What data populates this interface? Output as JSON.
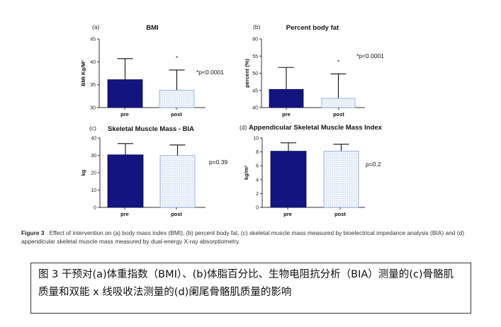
{
  "chart_data": [
    {
      "type": "bar",
      "panel": "(a)",
      "title": "BMI",
      "ylabel": "BMI Kg/M²",
      "ylim": [
        30,
        45
      ],
      "yticks": [
        30,
        35,
        40,
        45
      ],
      "categories": [
        "pre",
        "post"
      ],
      "values": [
        36.1,
        33.8
      ],
      "error_upper": [
        40.7,
        38.2
      ],
      "significance": [
        "",
        "*"
      ],
      "annotation": "*p<0.0001"
    },
    {
      "type": "bar",
      "panel": "(b)",
      "title": "Percent body fat",
      "ylabel": "percent (%)",
      "ylim": [
        40,
        60
      ],
      "yticks": [
        40,
        45,
        50,
        55,
        60
      ],
      "categories": [
        "pre",
        "post"
      ],
      "values": [
        45.3,
        42.7
      ],
      "error_upper": [
        51.7,
        49.8
      ],
      "significance": [
        "",
        "*"
      ],
      "annotation": "*p<0.0001"
    },
    {
      "type": "bar",
      "panel": "(c)",
      "title": "Skeletal Muscle Mass - BIA",
      "ylabel": "kg",
      "ylim": [
        0,
        40
      ],
      "yticks": [
        0,
        10,
        20,
        30,
        40
      ],
      "categories": [
        "pre",
        "post"
      ],
      "values": [
        30.3,
        29.9
      ],
      "error_upper": [
        36.8,
        36.0
      ],
      "significance": [
        "",
        ""
      ],
      "annotation": "p=0.39"
    },
    {
      "type": "bar",
      "panel": "(d)",
      "title": "Appendicular Skeletal Muscle Mass Index",
      "ylabel": "kg/m²",
      "ylim": [
        0,
        10
      ],
      "yticks": [
        0,
        2,
        4,
        6,
        8,
        10
      ],
      "categories": [
        "pre",
        "post"
      ],
      "values": [
        8.1,
        8.1
      ],
      "error_upper": [
        9.3,
        9.1
      ],
      "significance": [
        "",
        ""
      ],
      "annotation": "p=0.2"
    }
  ],
  "colors": {
    "pre_bar": "#13147f",
    "post_bar": "#eef4fb",
    "post_border": "#8aa8d8",
    "axis": "#333333"
  },
  "caption": {
    "lead": "Figure 3",
    "text": "Effect of intervention on (a) body mass index (BMI), (b) percent body fat, (c) skeletal muscle mass measured by bioelectrical impedance analysis (BIA) and (d) appendicular skeletal muscle mass measured by dual-energy X-ray absorptiometry."
  },
  "chinese_caption": "图 3 干预对(a)体重指数（BMI）、(b)体脂百分比、生物电阻抗分析（BIA）测量的(c)骨骼肌质量和双能 x 线吸收法测量的(d)阑尾骨骼肌质量的影响"
}
